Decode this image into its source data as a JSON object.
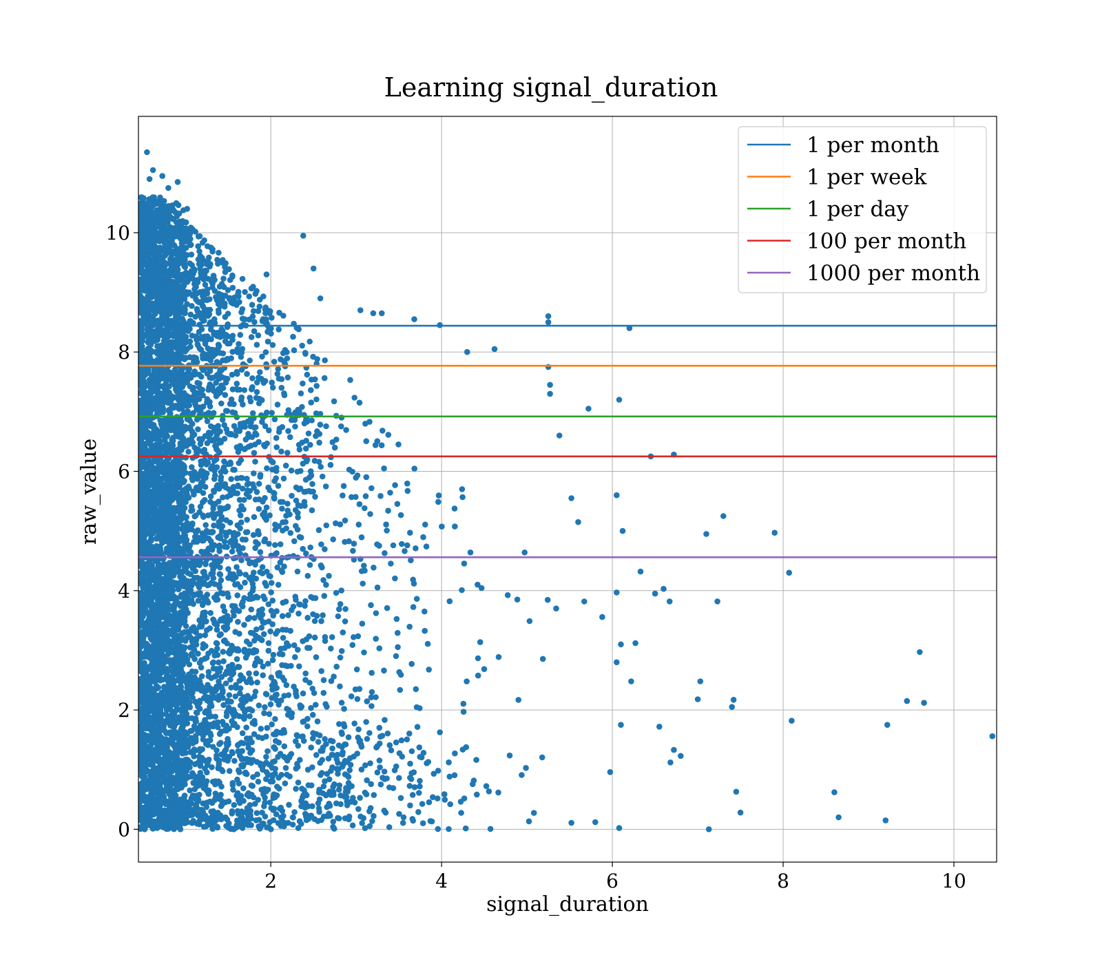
{
  "chart_data": {
    "type": "scatter",
    "title": "Learning signal_duration",
    "xlabel": "signal_duration",
    "ylabel": "raw_value",
    "xlim": [
      0.45,
      10.5
    ],
    "ylim": [
      -0.55,
      11.95
    ],
    "x_ticks": [
      2,
      4,
      6,
      8,
      10
    ],
    "y_ticks": [
      0,
      2,
      4,
      6,
      8,
      10
    ],
    "grid": true,
    "legend_position": "top-right",
    "scatter_color": "#1f77b4",
    "scatter_series": {
      "name": "",
      "description_points": [
        {
          "x": 0.55,
          "y": 11.35
        },
        {
          "x": 0.62,
          "y": 11.05
        },
        {
          "x": 0.58,
          "y": 10.9
        },
        {
          "x": 0.73,
          "y": 10.95
        },
        {
          "x": 0.8,
          "y": 10.75
        },
        {
          "x": 0.91,
          "y": 10.85
        },
        {
          "x": 1.02,
          "y": 10.4
        },
        {
          "x": 1.95,
          "y": 9.3
        },
        {
          "x": 2.38,
          "y": 9.95
        },
        {
          "x": 2.5,
          "y": 9.4
        },
        {
          "x": 2.58,
          "y": 8.9
        },
        {
          "x": 3.05,
          "y": 8.7
        },
        {
          "x": 3.2,
          "y": 8.65
        },
        {
          "x": 3.3,
          "y": 8.65
        },
        {
          "x": 3.68,
          "y": 8.55
        },
        {
          "x": 3.98,
          "y": 8.45
        },
        {
          "x": 4.3,
          "y": 8.0
        },
        {
          "x": 4.62,
          "y": 8.05
        },
        {
          "x": 5.25,
          "y": 8.6
        },
        {
          "x": 5.25,
          "y": 8.5
        },
        {
          "x": 6.2,
          "y": 8.4
        },
        {
          "x": 5.25,
          "y": 7.75
        },
        {
          "x": 5.27,
          "y": 7.45
        },
        {
          "x": 5.27,
          "y": 7.3
        },
        {
          "x": 5.72,
          "y": 7.05
        },
        {
          "x": 6.08,
          "y": 7.2
        },
        {
          "x": 5.38,
          "y": 6.6
        },
        {
          "x": 6.45,
          "y": 6.25
        },
        {
          "x": 6.72,
          "y": 6.28
        },
        {
          "x": 6.05,
          "y": 5.6
        },
        {
          "x": 5.52,
          "y": 5.55
        },
        {
          "x": 5.6,
          "y": 5.15
        },
        {
          "x": 6.12,
          "y": 5.0
        },
        {
          "x": 7.1,
          "y": 4.95
        },
        {
          "x": 7.3,
          "y": 5.25
        },
        {
          "x": 7.9,
          "y": 4.97
        },
        {
          "x": 6.33,
          "y": 4.32
        },
        {
          "x": 8.07,
          "y": 4.3
        },
        {
          "x": 6.6,
          "y": 4.03
        },
        {
          "x": 6.05,
          "y": 3.97
        },
        {
          "x": 6.5,
          "y": 3.95
        },
        {
          "x": 6.67,
          "y": 3.82
        },
        {
          "x": 7.23,
          "y": 3.82
        },
        {
          "x": 6.27,
          "y": 3.12
        },
        {
          "x": 6.1,
          "y": 3.1
        },
        {
          "x": 9.6,
          "y": 2.97
        },
        {
          "x": 6.05,
          "y": 2.8
        },
        {
          "x": 7.03,
          "y": 2.48
        },
        {
          "x": 6.22,
          "y": 2.48
        },
        {
          "x": 7.42,
          "y": 2.17
        },
        {
          "x": 9.45,
          "y": 2.15
        },
        {
          "x": 9.65,
          "y": 2.12
        },
        {
          "x": 7.0,
          "y": 2.18
        },
        {
          "x": 7.4,
          "y": 2.05
        },
        {
          "x": 8.1,
          "y": 1.82
        },
        {
          "x": 9.22,
          "y": 1.75
        },
        {
          "x": 10.45,
          "y": 1.56
        },
        {
          "x": 6.55,
          "y": 1.72
        },
        {
          "x": 6.1,
          "y": 1.75
        },
        {
          "x": 6.72,
          "y": 1.33
        },
        {
          "x": 6.8,
          "y": 1.23
        },
        {
          "x": 6.68,
          "y": 1.12
        },
        {
          "x": 7.45,
          "y": 0.63
        },
        {
          "x": 8.6,
          "y": 0.62
        },
        {
          "x": 7.5,
          "y": 0.28
        },
        {
          "x": 8.65,
          "y": 0.2
        },
        {
          "x": 9.2,
          "y": 0.15
        },
        {
          "x": 7.13,
          "y": 0.0
        },
        {
          "x": 6.08,
          "y": 0.02
        },
        {
          "x": 5.8,
          "y": 0.12
        }
      ]
    },
    "hlines": [
      {
        "name": "1 per month",
        "y": 8.44,
        "color": "#1f77b4"
      },
      {
        "name": "1 per week",
        "y": 7.77,
        "color": "#ff7f0e"
      },
      {
        "name": "1 per day",
        "y": 6.92,
        "color": "#2ca02c"
      },
      {
        "name": "100 per month",
        "y": 6.25,
        "color": "#d62728"
      },
      {
        "name": "1000 per month",
        "y": 4.56,
        "color": "#9467bd"
      }
    ]
  }
}
